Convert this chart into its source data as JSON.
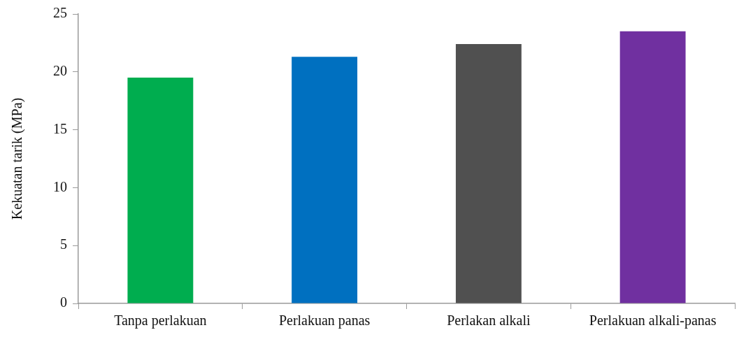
{
  "chart_data": {
    "type": "bar",
    "ylabel": "Kekuatan tarik (MPa)",
    "categories": [
      "Tanpa perlakuan",
      "Perlakuan panas",
      "Perlakan alkali",
      "Perlakuan alkali-panas"
    ],
    "values": [
      19.5,
      21.3,
      22.4,
      23.5
    ],
    "colors": [
      "#00ad4f",
      "#0070c0",
      "#505050",
      "#7030a0"
    ],
    "ylim": [
      0,
      25
    ],
    "yticks": [
      0,
      5,
      10,
      15,
      20,
      25
    ],
    "grid": false,
    "legend": false
  }
}
